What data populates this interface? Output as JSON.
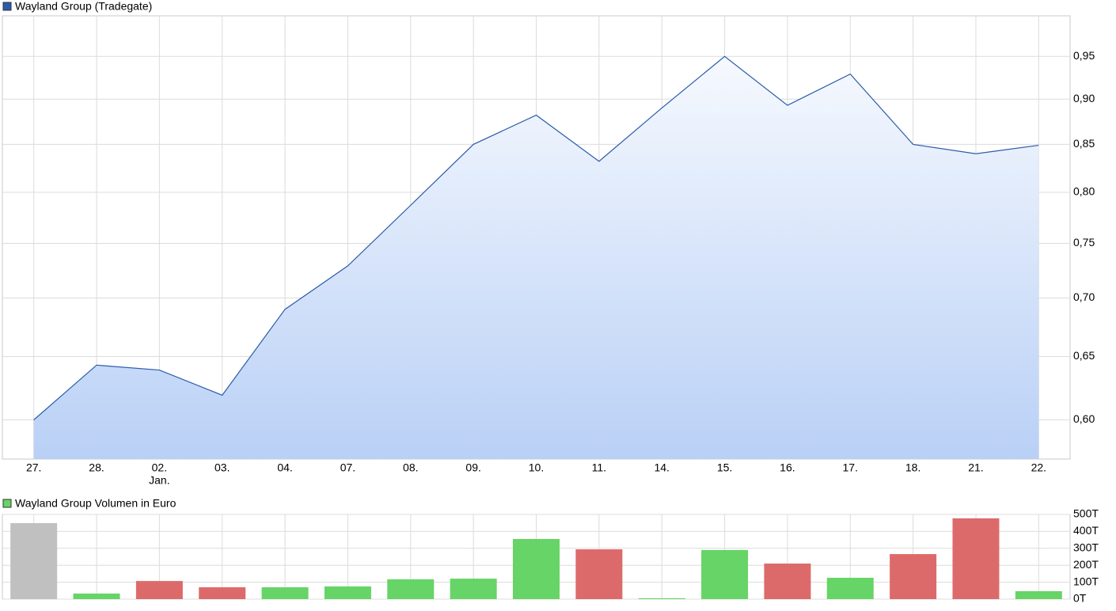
{
  "chart_data": [
    {
      "type": "line",
      "title": "Wayland Group (Tradegate)",
      "color": "#2a5caa",
      "log_scale": true,
      "grid": true,
      "categories": [
        "27.",
        "28.",
        "02.",
        "03.",
        "04.",
        "07.",
        "08.",
        "09.",
        "10.",
        "11.",
        "14.",
        "15.",
        "16.",
        "17.",
        "18.",
        "21.",
        "22."
      ],
      "annotations": [
        {
          "text": "Jan.",
          "category": "02."
        }
      ],
      "values": [
        0.6,
        0.643,
        0.639,
        0.619,
        0.69,
        0.729,
        0.787,
        0.85,
        0.882,
        0.832,
        0.89,
        0.95,
        0.893,
        0.929,
        0.85,
        0.84,
        0.849
      ],
      "ylim": [
        0.571,
        1.0
      ],
      "yticks": [
        {
          "value": 0.6,
          "label": "0,60"
        },
        {
          "value": 0.65,
          "label": "0,65"
        },
        {
          "value": 0.7,
          "label": "0,70"
        },
        {
          "value": 0.75,
          "label": "0,75"
        },
        {
          "value": 0.8,
          "label": "0,80"
        },
        {
          "value": 0.85,
          "label": "0,85"
        },
        {
          "value": 0.9,
          "label": "0,90"
        },
        {
          "value": 0.95,
          "label": "0,95"
        }
      ]
    },
    {
      "type": "bar",
      "title": "Wayland Group Volumen in Euro",
      "color": "#66d466",
      "grid": true,
      "values": [
        449000,
        33000,
        107000,
        70000,
        70000,
        75000,
        117000,
        121000,
        355000,
        294000,
        5000,
        290000,
        210000,
        126000,
        266000,
        477000,
        47000
      ],
      "colors": [
        "#c0c0c0",
        "#66d466",
        "#dd6a6a",
        "#dd6a6a",
        "#66d466",
        "#66d466",
        "#66d466",
        "#66d466",
        "#66d466",
        "#dd6a6a",
        "#66d466",
        "#66d466",
        "#dd6a6a",
        "#66d466",
        "#dd6a6a",
        "#dd6a6a",
        "#66d466"
      ],
      "ylim": [
        0,
        500000
      ],
      "yticks": [
        {
          "value": 0,
          "label": "0T"
        },
        {
          "value": 100000,
          "label": "100T"
        },
        {
          "value": 200000,
          "label": "200T"
        },
        {
          "value": 300000,
          "label": "300T"
        },
        {
          "value": 400000,
          "label": "400T"
        },
        {
          "value": 500000,
          "label": "500T"
        }
      ]
    }
  ]
}
